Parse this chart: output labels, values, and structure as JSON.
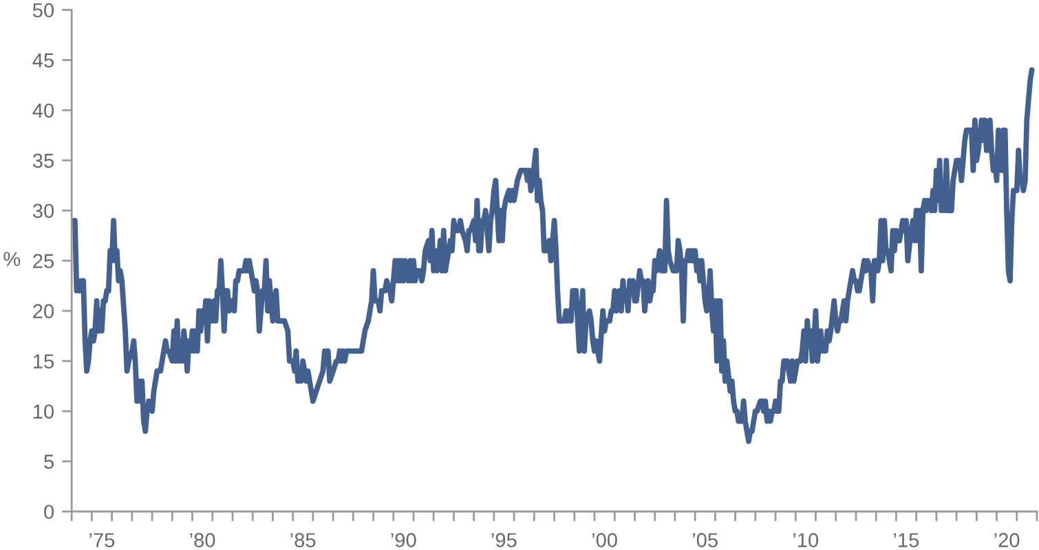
{
  "chart_data": {
    "type": "line",
    "ylabel": "%",
    "x": [
      "1974-02",
      "1974-03",
      "1974-04",
      "1974-05",
      "1974-06",
      "1974-07",
      "1974-08",
      "1974-09",
      "1974-10",
      "1974-11",
      "1974-12",
      "1975-01",
      "1975-02",
      "1975-03",
      "1975-04",
      "1975-05",
      "1975-06",
      "1975-07",
      "1975-08",
      "1975-09",
      "1975-10",
      "1975-11",
      "1975-12",
      "1976-01",
      "1976-02",
      "1976-03",
      "1976-04",
      "1976-05",
      "1976-06",
      "1976-07",
      "1976-09",
      "1976-10",
      "1976-11",
      "1977-01",
      "1977-02",
      "1977-03",
      "1977-04",
      "1977-05",
      "1977-06",
      "1977-07",
      "1977-08",
      "1977-09",
      "1977-10",
      "1977-11",
      "1978-01",
      "1978-02",
      "1978-04",
      "1978-06",
      "1978-09",
      "1978-10",
      "1978-11",
      "1979-01",
      "1979-02",
      "1979-03",
      "1979-04",
      "1979-05",
      "1979-06",
      "1979-07",
      "1979-08",
      "1979-09",
      "1979-10",
      "1979-11",
      "1979-12",
      "1980-01",
      "1980-02",
      "1980-03",
      "1980-04",
      "1980-05",
      "1980-06",
      "1980-07",
      "1980-08",
      "1980-09",
      "1980-10",
      "1980-11",
      "1981-01",
      "1981-02",
      "1981-03",
      "1981-04",
      "1981-05",
      "1981-06",
      "1981-07",
      "1981-08",
      "1981-09",
      "1981-10",
      "1981-11",
      "1982-01",
      "1982-02",
      "1982-03",
      "1982-04",
      "1982-05",
      "1982-08",
      "1982-09",
      "1982-10",
      "1982-11",
      "1982-12",
      "1983-02",
      "1983-03",
      "1983-04",
      "1983-05",
      "1983-07",
      "1983-08",
      "1983-09",
      "1983-10",
      "1983-11",
      "1983-12",
      "1984-01",
      "1984-02",
      "1984-03",
      "1984-04",
      "1984-05",
      "1984-08",
      "1984-10",
      "1984-11",
      "1985-01",
      "1985-02",
      "1985-03",
      "1985-04",
      "1985-05",
      "1985-06",
      "1985-07",
      "1985-08",
      "1985-09",
      "1985-10",
      "1985-11",
      "1986-01",
      "1986-03",
      "1986-05",
      "1986-07",
      "1986-08",
      "1986-09",
      "1986-10",
      "1986-11",
      "1987-01",
      "1987-03",
      "1987-04",
      "1987-05",
      "1987-06",
      "1987-07",
      "1987-08",
      "1987-09",
      "1988-02",
      "1988-06",
      "1988-08",
      "1988-10",
      "1988-12",
      "1989-01",
      "1989-02",
      "1989-04",
      "1989-05",
      "1989-06",
      "1989-08",
      "1989-09",
      "1989-11",
      "1989-12",
      "1990-01",
      "1990-02",
      "1990-03",
      "1990-04",
      "1990-05",
      "1990-06",
      "1990-07",
      "1990-08",
      "1990-10",
      "1990-11",
      "1990-12",
      "1991-01",
      "1991-02",
      "1991-03",
      "1991-05",
      "1991-06",
      "1991-07",
      "1991-08",
      "1991-10",
      "1991-11",
      "1991-12",
      "1992-01",
      "1992-02",
      "1992-03",
      "1992-04",
      "1992-05",
      "1992-06",
      "1992-07",
      "1992-08",
      "1992-10",
      "1992-11",
      "1992-12",
      "1993-01",
      "1993-02",
      "1993-03",
      "1993-04",
      "1993-05",
      "1993-06",
      "1993-08",
      "1993-09",
      "1993-10",
      "1993-11",
      "1994-01",
      "1994-02",
      "1994-03",
      "1994-04",
      "1994-05",
      "1994-06",
      "1994-07",
      "1994-08",
      "1994-10",
      "1994-11",
      "1994-12",
      "1995-01",
      "1995-02",
      "1995-03",
      "1995-04",
      "1995-05",
      "1995-06",
      "1995-07",
      "1995-08",
      "1995-10",
      "1995-11",
      "1995-12",
      "1996-01",
      "1996-02",
      "1996-03",
      "1996-05",
      "1996-06",
      "1996-08",
      "1996-09",
      "1996-10",
      "1996-11",
      "1996-12",
      "1997-02",
      "1997-03",
      "1997-04",
      "1997-05",
      "1997-06",
      "1997-07",
      "1997-08",
      "1997-09",
      "1997-10",
      "1997-11",
      "1998-01",
      "1998-02",
      "1998-03",
      "1998-04",
      "1998-05",
      "1998-07",
      "1998-08",
      "1998-09",
      "1998-10",
      "1998-11",
      "1998-12",
      "1999-02",
      "1999-03",
      "1999-04",
      "1999-05",
      "1999-06",
      "1999-07",
      "1999-08",
      "1999-10",
      "1999-11",
      "1999-12",
      "2000-01",
      "2000-02",
      "2000-03",
      "2000-04",
      "2000-06",
      "2000-07",
      "2000-08",
      "2000-10",
      "2000-11",
      "2000-12",
      "2001-01",
      "2001-02",
      "2001-04",
      "2001-05",
      "2001-06",
      "2001-07",
      "2001-08",
      "2001-09",
      "2001-10",
      "2001-11",
      "2001-12",
      "2002-01",
      "2002-02",
      "2002-04",
      "2002-05",
      "2002-06",
      "2002-07",
      "2002-08",
      "2002-09",
      "2002-10",
      "2002-11",
      "2002-12",
      "2003-01",
      "2003-02",
      "2003-04",
      "2003-05",
      "2003-06",
      "2003-07",
      "2003-08",
      "2003-09",
      "2003-10",
      "2003-12",
      "2004-02",
      "2004-03",
      "2004-04",
      "2004-05",
      "2004-06",
      "2004-07",
      "2004-08",
      "2004-09",
      "2004-10",
      "2004-11",
      "2004-12",
      "2005-01",
      "2005-02",
      "2005-03",
      "2005-04",
      "2005-05",
      "2005-07",
      "2005-08",
      "2005-09",
      "2005-10",
      "2005-11",
      "2005-12",
      "2006-01",
      "2006-02",
      "2006-03",
      "2006-04",
      "2006-05",
      "2006-06",
      "2006-07",
      "2006-08",
      "2006-10",
      "2006-11",
      "2006-12",
      "2007-01",
      "2007-02",
      "2007-03",
      "2007-04",
      "2007-05",
      "2007-06",
      "2007-07",
      "2007-09",
      "2007-10",
      "2007-11",
      "2007-12",
      "2008-01",
      "2008-02",
      "2008-04",
      "2008-05",
      "2008-06",
      "2008-07",
      "2008-08",
      "2008-09",
      "2008-10",
      "2008-11",
      "2008-12",
      "2009-01",
      "2009-02",
      "2009-03",
      "2009-04",
      "2009-05",
      "2009-06",
      "2009-07",
      "2009-08",
      "2009-10",
      "2009-11",
      "2009-12",
      "2010-01",
      "2010-02",
      "2010-04",
      "2010-05",
      "2010-06",
      "2010-07",
      "2010-08",
      "2010-09",
      "2010-10",
      "2010-11",
      "2010-12",
      "2011-01",
      "2011-02",
      "2011-04",
      "2011-05",
      "2011-06",
      "2011-07",
      "2011-08",
      "2011-09",
      "2011-10",
      "2011-12",
      "2012-01",
      "2012-02",
      "2012-03",
      "2012-04",
      "2012-05",
      "2012-06",
      "2012-07",
      "2012-08",
      "2012-10",
      "2012-11",
      "2012-12",
      "2013-01",
      "2013-02",
      "2013-03",
      "2013-04",
      "2013-05",
      "2013-06",
      "2013-07",
      "2013-08",
      "2013-10",
      "2013-11",
      "2013-12",
      "2014-01",
      "2014-02",
      "2014-03",
      "2014-04",
      "2014-05",
      "2014-06",
      "2014-07",
      "2014-08",
      "2014-10",
      "2014-11",
      "2014-12",
      "2015-01",
      "2015-02",
      "2015-03",
      "2015-04",
      "2015-05",
      "2015-06",
      "2015-07",
      "2015-08",
      "2015-10",
      "2015-11",
      "2015-12",
      "2016-01",
      "2016-02",
      "2016-03",
      "2016-04",
      "2016-05",
      "2016-06",
      "2016-07",
      "2016-08",
      "2016-10",
      "2016-11",
      "2016-12",
      "2017-01",
      "2017-02",
      "2017-03",
      "2017-04",
      "2017-05",
      "2017-06",
      "2017-07",
      "2017-08",
      "2017-10",
      "2017-11",
      "2017-12",
      "2018-01",
      "2018-02",
      "2018-03",
      "2018-04",
      "2018-05",
      "2018-06",
      "2018-07",
      "2018-09",
      "2018-10",
      "2018-11",
      "2018-12",
      "2019-01",
      "2019-02",
      "2019-04",
      "2019-05",
      "2019-06",
      "2019-07",
      "2019-08",
      "2019-09",
      "2019-10",
      "2019-11",
      "2019-12",
      "2020-01",
      "2020-02",
      "2020-04",
      "2020-05",
      "2020-06",
      "2020-07",
      "2020-08",
      "2020-09",
      "2020-10",
      "2020-11",
      "2021-01",
      "2021-02",
      "2021-03",
      "2021-04",
      "2021-05",
      "2021-06",
      "2021-07",
      "2021-08",
      "2021-09",
      "2021-10"
    ],
    "series": [
      {
        "color": "#44608e",
        "values": [
          29,
          29,
          22,
          23,
          22,
          23,
          23,
          17,
          14,
          15,
          17,
          18,
          17,
          18,
          21,
          18,
          20,
          18,
          21,
          21,
          22,
          22,
          26,
          25,
          29,
          25,
          26,
          23,
          24,
          23,
          18,
          14,
          15,
          16,
          17,
          15,
          11,
          13,
          11,
          13,
          9,
          8,
          10,
          11,
          10,
          12,
          14,
          14,
          17,
          16,
          16,
          15,
          18,
          15,
          19,
          15,
          17,
          15,
          18,
          16,
          14,
          17,
          16,
          18,
          16,
          18,
          16,
          20,
          18,
          20,
          19,
          21,
          17,
          21,
          19,
          21,
          19,
          22,
          22,
          25,
          22,
          18,
          22,
          22,
          20,
          21,
          20,
          23,
          23,
          24,
          24,
          25,
          24,
          25,
          24,
          22,
          23,
          22,
          18,
          22,
          22,
          25,
          20,
          23,
          21,
          19,
          20,
          22,
          19,
          19,
          19,
          18,
          15,
          15,
          14,
          16,
          13,
          14,
          13,
          15,
          14,
          13,
          14,
          13,
          11,
          12,
          13,
          14,
          16,
          15,
          16,
          13,
          14,
          15,
          15,
          16,
          15,
          16,
          15,
          16,
          16,
          16,
          18,
          19,
          21,
          24,
          21,
          21,
          20,
          22,
          22,
          23,
          22,
          21,
          23,
          25,
          23,
          25,
          23,
          25,
          23,
          25,
          23,
          25,
          23,
          25,
          23,
          24,
          24,
          23,
          24,
          26,
          27,
          25,
          28,
          24,
          26,
          24,
          25,
          27,
          24,
          28,
          24,
          26,
          27,
          26,
          29,
          28,
          28,
          28,
          29,
          28,
          27,
          26,
          28,
          28,
          29,
          27,
          31,
          26,
          26,
          29,
          29,
          30,
          26,
          29,
          30,
          32,
          33,
          30,
          27,
          30,
          27,
          30,
          31,
          32,
          31,
          32,
          31,
          32,
          33,
          34,
          34,
          34,
          33,
          34,
          32,
          33,
          36,
          31,
          33,
          31,
          30,
          26,
          26,
          26,
          27,
          25,
          29,
          26,
          22,
          19,
          19,
          19,
          20,
          19,
          20,
          19,
          22,
          22,
          19,
          16,
          19,
          22,
          16,
          19,
          20,
          19,
          17,
          16,
          17,
          16,
          15,
          20,
          18,
          19,
          19,
          20,
          20,
          22,
          20,
          22,
          20,
          23,
          21,
          22,
          20,
          23,
          22,
          23,
          21,
          21,
          24,
          23,
          23,
          20,
          22,
          23,
          21,
          22,
          22,
          25,
          24,
          26,
          24,
          24,
          24,
          31,
          26,
          25,
          24,
          24,
          27,
          26,
          24,
          19,
          25,
          25,
          26,
          25,
          26,
          25,
          26,
          24,
          25,
          23,
          25,
          21,
          20,
          21,
          24,
          20,
          18,
          21,
          15,
          21,
          21,
          14,
          17,
          13,
          15,
          12,
          13,
          11,
          10,
          10,
          9,
          9,
          9,
          11,
          9,
          7,
          8,
          8,
          9,
          10,
          10,
          11,
          11,
          10,
          11,
          9,
          10,
          9,
          10,
          10,
          11,
          10,
          10,
          13,
          13,
          15,
          15,
          15,
          13,
          15,
          13,
          14,
          15,
          15,
          16,
          18,
          15,
          19,
          17,
          18,
          15,
          17,
          20,
          15,
          18,
          16,
          17,
          16,
          18,
          17,
          18,
          21,
          19,
          18,
          19,
          19,
          20,
          21,
          19,
          21,
          23,
          24,
          23,
          23,
          22,
          22,
          23,
          24,
          25,
          24,
          25,
          24,
          21,
          25,
          25,
          24,
          25,
          29,
          25,
          29,
          26,
          26,
          24,
          28,
          26,
          28,
          27,
          27,
          28,
          29,
          28,
          29,
          25,
          28,
          29,
          27,
          30,
          27,
          30,
          24,
          30,
          31,
          30,
          31,
          30,
          32,
          30,
          34,
          31,
          35,
          30,
          32,
          30,
          35,
          30,
          30,
          33,
          34,
          35,
          35,
          35,
          33,
          35,
          37,
          38,
          38,
          38,
          34,
          39,
          35,
          36,
          39,
          37,
          39,
          36,
          36,
          39,
          36,
          34,
          35,
          33,
          38,
          34,
          38,
          38,
          30,
          24,
          23,
          29,
          32,
          32,
          36,
          33,
          33,
          32,
          33,
          39,
          41,
          43,
          44
        ]
      }
    ],
    "xlim": [
      "1974-01",
      "2022-01"
    ],
    "ylim": [
      0,
      50
    ],
    "xticks": [
      {
        "value": "1974",
        "label": null
      },
      {
        "value": "1975",
        "label": null
      },
      {
        "value": "1975-07",
        "label": "’75"
      },
      {
        "value": "1976",
        "label": null
      },
      {
        "value": "1977",
        "label": null
      },
      {
        "value": "1978",
        "label": null
      },
      {
        "value": "1979",
        "label": null
      },
      {
        "value": "1980",
        "label": null
      },
      {
        "value": "1980-07",
        "label": "’80"
      },
      {
        "value": "1981",
        "label": null
      },
      {
        "value": "1982",
        "label": null
      },
      {
        "value": "1983",
        "label": null
      },
      {
        "value": "1984",
        "label": null
      },
      {
        "value": "1985",
        "label": null
      },
      {
        "value": "1985-07",
        "label": "’85"
      },
      {
        "value": "1986",
        "label": null
      },
      {
        "value": "1987",
        "label": null
      },
      {
        "value": "1988",
        "label": null
      },
      {
        "value": "1989",
        "label": null
      },
      {
        "value": "1990",
        "label": null
      },
      {
        "value": "1990-07",
        "label": "’90"
      },
      {
        "value": "1991",
        "label": null
      },
      {
        "value": "1992",
        "label": null
      },
      {
        "value": "1993",
        "label": null
      },
      {
        "value": "1994",
        "label": null
      },
      {
        "value": "1995",
        "label": null
      },
      {
        "value": "1995-07",
        "label": "’95"
      },
      {
        "value": "1996",
        "label": null
      },
      {
        "value": "1997",
        "label": null
      },
      {
        "value": "1998",
        "label": null
      },
      {
        "value": "1999",
        "label": null
      },
      {
        "value": "2000",
        "label": null
      },
      {
        "value": "2000-07",
        "label": "’00"
      },
      {
        "value": "2001",
        "label": null
      },
      {
        "value": "2002",
        "label": null
      },
      {
        "value": "2003",
        "label": null
      },
      {
        "value": "2004",
        "label": null
      },
      {
        "value": "2005",
        "label": null
      },
      {
        "value": "2005-07",
        "label": "’05"
      },
      {
        "value": "2006",
        "label": null
      },
      {
        "value": "2007",
        "label": null
      },
      {
        "value": "2008",
        "label": null
      },
      {
        "value": "2009",
        "label": null
      },
      {
        "value": "2010",
        "label": null
      },
      {
        "value": "2010-07",
        "label": "’10"
      },
      {
        "value": "2011",
        "label": null
      },
      {
        "value": "2012",
        "label": null
      },
      {
        "value": "2013",
        "label": null
      },
      {
        "value": "2014",
        "label": null
      },
      {
        "value": "2015",
        "label": null
      },
      {
        "value": "2015-07",
        "label": "’15"
      },
      {
        "value": "2016",
        "label": null
      },
      {
        "value": "2017",
        "label": null
      },
      {
        "value": "2018",
        "label": null
      },
      {
        "value": "2019",
        "label": null
      },
      {
        "value": "2020",
        "label": null
      },
      {
        "value": "2020-07",
        "label": "’20"
      },
      {
        "value": "2021",
        "label": null
      },
      {
        "value": "2022",
        "label": null
      }
    ],
    "yticks": [
      0,
      5,
      10,
      15,
      20,
      25,
      30,
      35,
      40,
      45,
      50
    ],
    "line_style": "solid"
  }
}
